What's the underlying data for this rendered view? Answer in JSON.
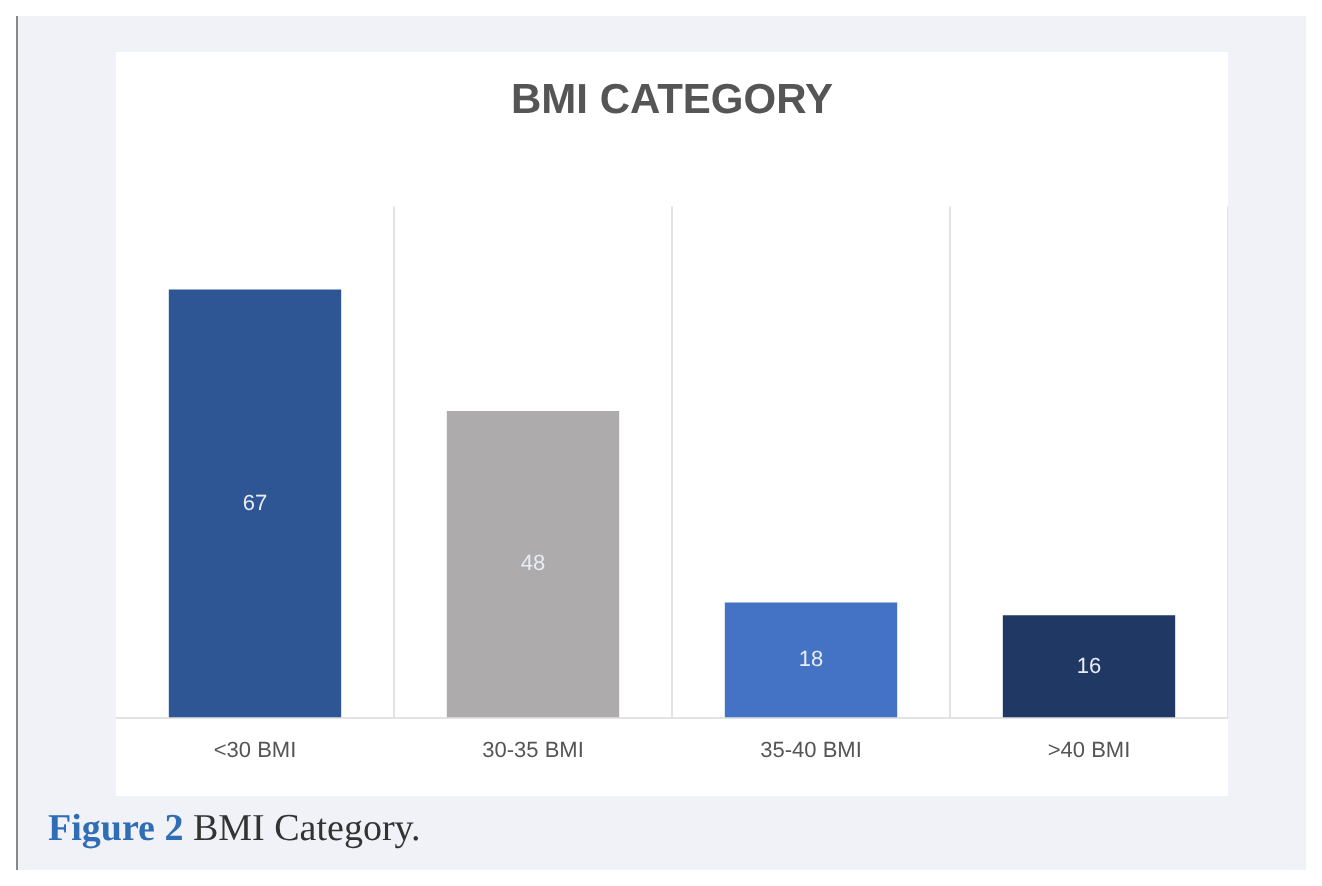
{
  "chart_data": {
    "type": "bar",
    "title": "BMI CATEGORY",
    "categories": [
      "<30 BMI",
      "30-35 BMI",
      "35-40 BMI",
      ">40 BMI"
    ],
    "values": [
      67,
      48,
      18,
      16
    ],
    "colors": [
      "#2e5694",
      "#aeabac",
      "#4472c4",
      "#203864"
    ],
    "data_labels": true,
    "grid": "x",
    "legend": false,
    "annotations": [
      "Figure 2 BMI Category."
    ]
  }
}
